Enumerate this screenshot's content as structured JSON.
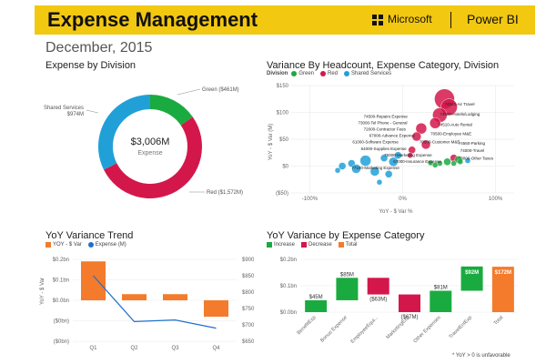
{
  "header": {
    "title": "Expense Management",
    "brand": "Microsoft",
    "product": "Power BI"
  },
  "date": "December, 2015",
  "colors": {
    "green": "#1aab40",
    "red": "#d4174b",
    "blue": "#21a0d8",
    "orange": "#f37b2b",
    "darkblue": "#1f6fcf"
  },
  "donut": {
    "title": "Expense by Division",
    "center_value": "$3,006M",
    "center_label": "Expense",
    "chart_data": {
      "type": "pie",
      "values": [
        461,
        1572,
        974
      ],
      "labels": [
        "Green ($461M)",
        "Red ($1,572M)",
        "Shared Services $974M"
      ]
    },
    "label_green": "Green ($461M)",
    "label_red": "Red ($1,572M)",
    "label_shared_1": "Shared Services",
    "label_shared_2": "$974M"
  },
  "scatter": {
    "title": "Variance By Headcount, Expense  Category, Division",
    "legend_label": "Division",
    "legend": [
      "Green",
      "Red",
      "Shared Services"
    ],
    "x_axis_label": "YoY - $ Var %",
    "y_axis_label": "YoY - $ Var (M)",
    "y_ticks": [
      "$150",
      "$100",
      "$50",
      "$0",
      "($50)"
    ],
    "x_ticks": [
      "-100%",
      "0%",
      "100%"
    ],
    "annotations": [
      "74520-Air Travel",
      "74500-Hotels/Lodging",
      "74510-Auto Rental",
      "70500-Employee M&E",
      "70500-Customer M&E",
      "74500-Repairs Expense",
      "73000-Tel Phone - General",
      "72000-Contractor Fees",
      "67000-Advance Expense",
      "61000-Software Expense",
      "64000-Supplies Expense",
      "75000-Marketing Expense",
      "67000-Insurance Expense",
      "77100-Marketing Expense",
      "74560-Parking",
      "74000-Travel",
      "73000-Other Taxes"
    ],
    "chart_data": {
      "type": "scatter",
      "x_label": "YoY - $ Var %",
      "y_label": "YoY - $ Var (M)",
      "ylim": [
        -50,
        150
      ],
      "series": [
        {
          "name": "Red",
          "points": [
            [
              45,
              125
            ],
            [
              50,
              110
            ],
            [
              40,
              95
            ],
            [
              35,
              80
            ],
            [
              20,
              70
            ],
            [
              15,
              55
            ],
            [
              25,
              40
            ],
            [
              10,
              30
            ],
            [
              55,
              15
            ],
            [
              8,
              20
            ]
          ]
        },
        {
          "name": "Green",
          "points": [
            [
              40,
              5
            ],
            [
              48,
              8
            ],
            [
              55,
              5
            ],
            [
              60,
              12
            ],
            [
              62,
              8
            ],
            [
              30,
              6
            ],
            [
              35,
              2
            ]
          ]
        },
        {
          "name": "Shared Services",
          "points": [
            [
              -30,
              -10
            ],
            [
              -40,
              10
            ],
            [
              -55,
              5
            ],
            [
              -65,
              0
            ],
            [
              -50,
              -5
            ],
            [
              -20,
              15
            ],
            [
              -10,
              8
            ],
            [
              -5,
              20
            ],
            [
              -70,
              -8
            ],
            [
              -25,
              -30
            ],
            [
              -15,
              -15
            ],
            [
              70,
              10
            ]
          ]
        }
      ]
    }
  },
  "trend": {
    "title": "YoY Variance Trend",
    "legend": [
      "YOY - $ Var",
      "Expense (M)"
    ],
    "y_axis_label": "YoY - $ Var",
    "y_ticks_left": [
      "$0.2bn",
      "$0.1bn",
      "$0.0bn",
      "($0bn)",
      "($0bn)"
    ],
    "y_ticks_right": [
      "$900",
      "$850",
      "$800",
      "$750",
      "$700",
      "$650"
    ],
    "categories": [
      "Q1",
      "Q2",
      "Q3",
      "Q4"
    ],
    "chart_data": {
      "type": "bar",
      "categories": [
        "Q1",
        "Q2",
        "Q3",
        "Q4"
      ],
      "series": [
        {
          "name": "YOY - $ Var",
          "type": "bar",
          "values": [
            0.19,
            0.03,
            0.03,
            -0.08
          ]
        },
        {
          "name": "Expense (M)",
          "type": "line",
          "values": [
            850,
            710,
            715,
            690
          ]
        }
      ],
      "ylim_left": [
        -0.2,
        0.2
      ],
      "ylim_right": [
        650,
        900
      ]
    }
  },
  "waterfall": {
    "title": "YoY Variance by Expense Category",
    "legend": [
      "Increase",
      "Decrease",
      "Total"
    ],
    "y_ticks": [
      "$0.2bn",
      "$0.1bn",
      "$0.0bn"
    ],
    "categories": [
      "BenefitExp",
      "Bonus Expense",
      "EmployeeEqui...",
      "MarketingExp",
      "Other Expenses",
      "TravelEntExp",
      "Total"
    ],
    "labels": [
      "$45M",
      "$85M",
      "($63M)",
      "($67M)",
      "$81M",
      "$92M",
      "$172M"
    ],
    "chart_data": {
      "type": "bar",
      "subtype": "waterfall",
      "categories": [
        "BenefitExp",
        "Bonus Expense",
        "EmployeeEqui...",
        "MarketingExp",
        "Other Expenses",
        "TravelEntExp",
        "Total"
      ],
      "values": [
        45,
        85,
        -63,
        -67,
        81,
        92,
        172
      ],
      "kinds": [
        "increase",
        "increase",
        "decrease",
        "decrease",
        "increase",
        "increase",
        "total"
      ]
    }
  },
  "footnote": "* YoY > 0 is unfavorable"
}
